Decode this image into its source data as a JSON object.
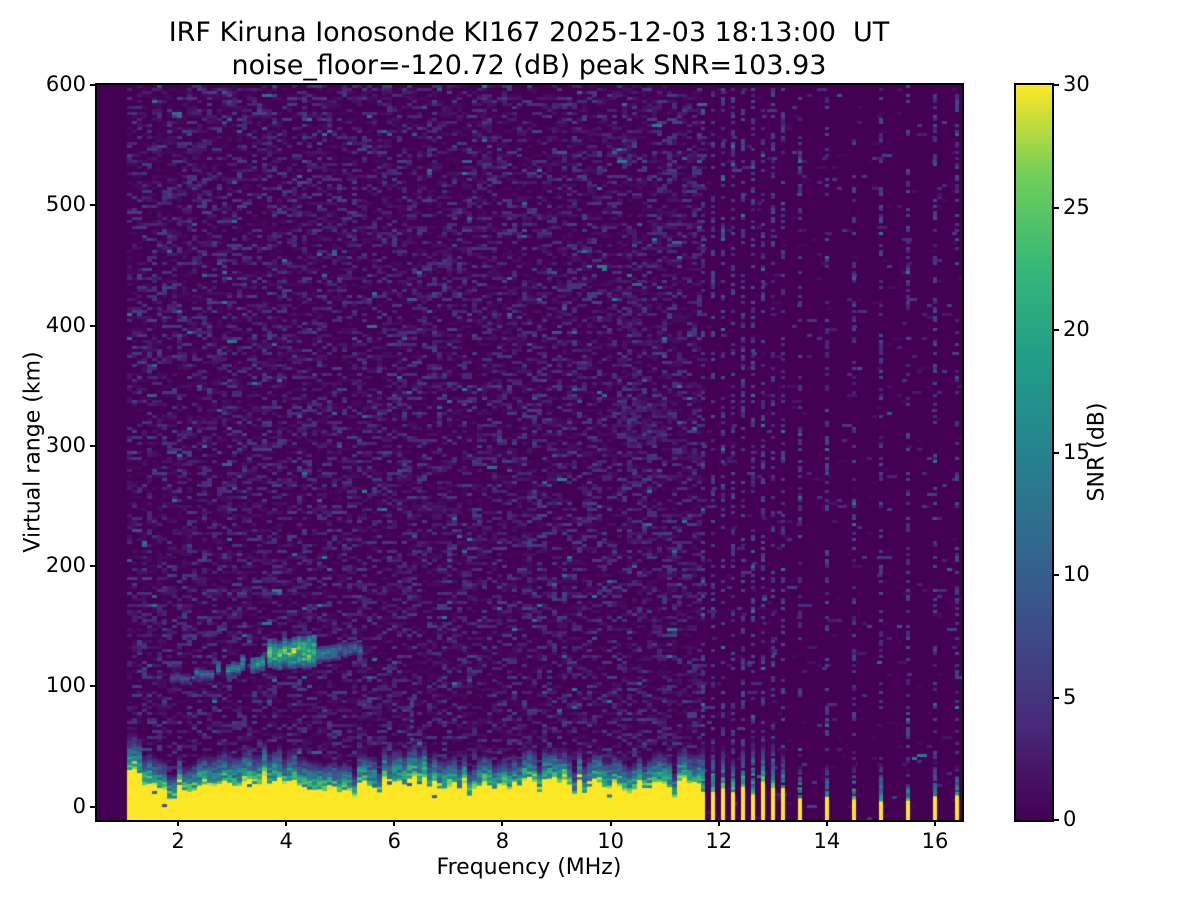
{
  "figure": {
    "title_line1": "IRF Kiruna Ionosonde KI167 2025-12-03 18:13:00  UT",
    "title_line2": "noise_floor=-120.72 (dB) peak SNR=103.93",
    "background_color": "#ffffff",
    "text_color": "#000000"
  },
  "axes": {
    "xlabel": "Frequency (MHz)",
    "ylabel": "Virtual range (km)",
    "x_ticks": [
      2,
      4,
      6,
      8,
      10,
      12,
      14,
      16
    ],
    "y_ticks": [
      0,
      100,
      200,
      300,
      400,
      500,
      600
    ]
  },
  "colorbar": {
    "label": "SNR (dB)",
    "ticks": [
      0,
      5,
      10,
      15,
      20,
      25,
      30
    ],
    "min": 0,
    "max": 30,
    "colormap": "viridis",
    "stops": [
      "#440154",
      "#482878",
      "#3e4a89",
      "#31688e",
      "#26828e",
      "#1f9e89",
      "#35b779",
      "#6ece58",
      "#fde725"
    ]
  },
  "chart_data": {
    "type": "heatmap",
    "title": "IRF Kiruna Ionosonde KI167 2025-12-03 18:13:00  UT",
    "subtitle": "noise_floor=-120.72 (dB) peak SNR=103.93",
    "station": "KI167",
    "timestamp_ut": "2025-12-03 18:13:00",
    "noise_floor_db": -120.72,
    "peak_snr_db": 103.93,
    "xlabel": "Frequency (MHz)",
    "ylabel": "Virtual range (km)",
    "xlim": [
      0.5,
      16.5
    ],
    "ylim": [
      -11,
      600
    ],
    "x_ticks": [
      2,
      4,
      6,
      8,
      10,
      12,
      14,
      16
    ],
    "y_ticks": [
      0,
      100,
      200,
      300,
      400,
      500,
      600
    ],
    "grid": false,
    "colorbar": {
      "label": "SNR (dB)",
      "min": 0,
      "max": 30,
      "ticks": [
        0,
        5,
        10,
        15,
        20,
        25,
        30
      ],
      "colormap": "viridis"
    },
    "features": {
      "sounding_band_mhz": [
        1.0,
        16.45
      ],
      "background_snr_db": 0,
      "noise_speckle": {
        "density": 0.42,
        "snr_typical_db": [
          1,
          7
        ],
        "sparse_region_above_mhz": 11.65,
        "sparse_density": 0.03
      },
      "ground_clutter_band": {
        "f0_mhz": 1.0,
        "f1_mhz": 11.65,
        "km_bottom": -10,
        "top_km_mean": 30,
        "top_km_jitter_km": 12,
        "fringe_km": 16,
        "snr_db": 30
      },
      "es_layer_trace": [
        {
          "f0": 1.85,
          "f1": 2.3,
          "km": 108,
          "thick_km": 7,
          "snr": 10
        },
        {
          "f0": 2.3,
          "f1": 2.7,
          "km": 112,
          "thick_km": 8,
          "snr": 13
        },
        {
          "f0": 2.7,
          "f1": 3.15,
          "km": 116,
          "thick_km": 10,
          "snr": 17
        },
        {
          "f0": 3.15,
          "f1": 3.6,
          "km": 121,
          "thick_km": 13,
          "snr": 19
        },
        {
          "f0": 3.65,
          "f1": 4.1,
          "km": 128,
          "thick_km": 22,
          "snr": 26
        },
        {
          "f0": 4.1,
          "f1": 4.5,
          "km": 131,
          "thick_km": 26,
          "snr": 28
        },
        {
          "f0": 4.55,
          "f1": 4.95,
          "km": 130,
          "thick_km": 12,
          "snr": 16
        },
        {
          "f0": 4.95,
          "f1": 5.35,
          "km": 132,
          "thick_km": 9,
          "snr": 13
        }
      ],
      "interference_columns_mhz": {
        "dense": [
          11.7,
          11.9,
          12.08,
          12.27,
          12.45,
          12.63,
          12.82,
          13.0,
          13.18
        ],
        "sparse": [
          13.5,
          14.0,
          14.5,
          15.0,
          15.5,
          16.0,
          16.4
        ]
      },
      "weak_streak": {
        "f_mhz": 6.33,
        "km0": 50,
        "km1": 92,
        "snr_db": 8
      },
      "diffuse_patch": {
        "f0_mhz": 10.2,
        "f1_mhz": 11.0,
        "km0": 303,
        "km1": 337,
        "snr_db": 3
      }
    }
  }
}
